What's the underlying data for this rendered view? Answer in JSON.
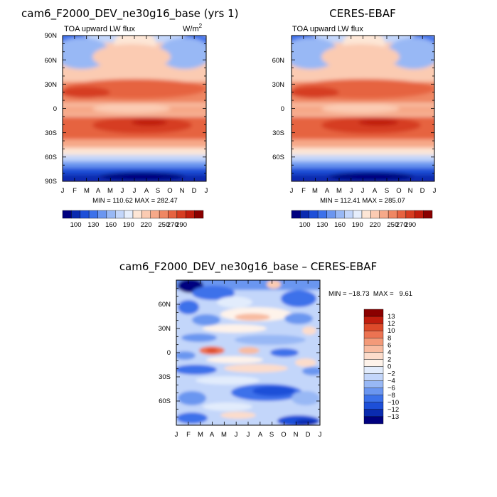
{
  "panels": [
    {
      "id": "model",
      "title": "cam6_F2000_DEV_ne30g16_base (yrs 1)",
      "subtitle_left": "TOA upward LW flux",
      "subtitle_right": "W/m",
      "subtitle_right_sup": "2",
      "stats": "MIN = 110.62  MAX = 282.47"
    },
    {
      "id": "obs",
      "title": "CERES-EBAF",
      "subtitle_left": "TOA upward LW flux",
      "stats": "MIN = 112.41  MAX = 285.07"
    },
    {
      "id": "diff",
      "title": "cam6_F2000_DEV_ne30g16_base – CERES-EBAF",
      "stats": "MIN = −18.73  MAX =   9.61"
    }
  ],
  "chart_data": [
    {
      "type": "heatmap",
      "title": "cam6_F2000_DEV_ne30g16_base (yrs 1)",
      "variable": "TOA upward LW flux",
      "units": "W/m2",
      "x_ticks": [
        "J",
        "F",
        "M",
        "A",
        "M",
        "J",
        "J",
        "A",
        "S",
        "O",
        "N",
        "D",
        "J"
      ],
      "y_ticks": [
        "90N",
        "60N",
        "30N",
        "0",
        "30S",
        "60S",
        "90S"
      ],
      "ylim": [
        -90,
        90
      ],
      "min": 110.62,
      "max": 282.47
    },
    {
      "type": "heatmap",
      "title": "CERES-EBAF",
      "variable": "TOA upward LW flux",
      "x_ticks": [
        "J",
        "F",
        "M",
        "A",
        "M",
        "J",
        "J",
        "A",
        "S",
        "O",
        "N",
        "D",
        "J"
      ],
      "y_ticks": [
        "60N",
        "30N",
        "0",
        "30S",
        "60S"
      ],
      "ylim": [
        -90,
        90
      ],
      "min": 112.41,
      "max": 285.07
    },
    {
      "type": "heatmap",
      "title": "cam6_F2000_DEV_ne30g16_base – CERES-EBAF",
      "x_ticks": [
        "J",
        "F",
        "M",
        "A",
        "M",
        "J",
        "J",
        "A",
        "S",
        "O",
        "N",
        "D",
        "J"
      ],
      "y_ticks": [
        "60N",
        "30N",
        "0",
        "30S",
        "60S"
      ],
      "ylim": [
        -90,
        90
      ],
      "min": -18.73,
      "max": 9.61
    }
  ],
  "colorbar_abs": {
    "labels": [
      "100",
      "130",
      "160",
      "190",
      "220",
      "250",
      "270",
      "290"
    ],
    "colors": [
      "#00007f",
      "#0a2bb0",
      "#1d4fd8",
      "#3c71ea",
      "#6b96f0",
      "#98b8f5",
      "#c3d6fa",
      "#e6eefc",
      "#fde6d6",
      "#fbcbb2",
      "#f6a989",
      "#ef8763",
      "#e66341",
      "#d63d22",
      "#c01d0e",
      "#8a0000"
    ]
  },
  "colorbar_diff": {
    "labels": [
      "13",
      "12",
      "10",
      "8",
      "6",
      "4",
      "2",
      "0",
      "−2",
      "−4",
      "−6",
      "−8",
      "−10",
      "−12",
      "−13"
    ],
    "colors": [
      "#8a0000",
      "#c01d0e",
      "#dd4a2a",
      "#ec7352",
      "#f39a79",
      "#f8bba0",
      "#fcdccb",
      "#fef3ea",
      "#e2ecfc",
      "#c3d6fa",
      "#98b8f5",
      "#6b96f0",
      "#3c71ea",
      "#1d4fd8",
      "#0a2bb0",
      "#00007f"
    ]
  }
}
